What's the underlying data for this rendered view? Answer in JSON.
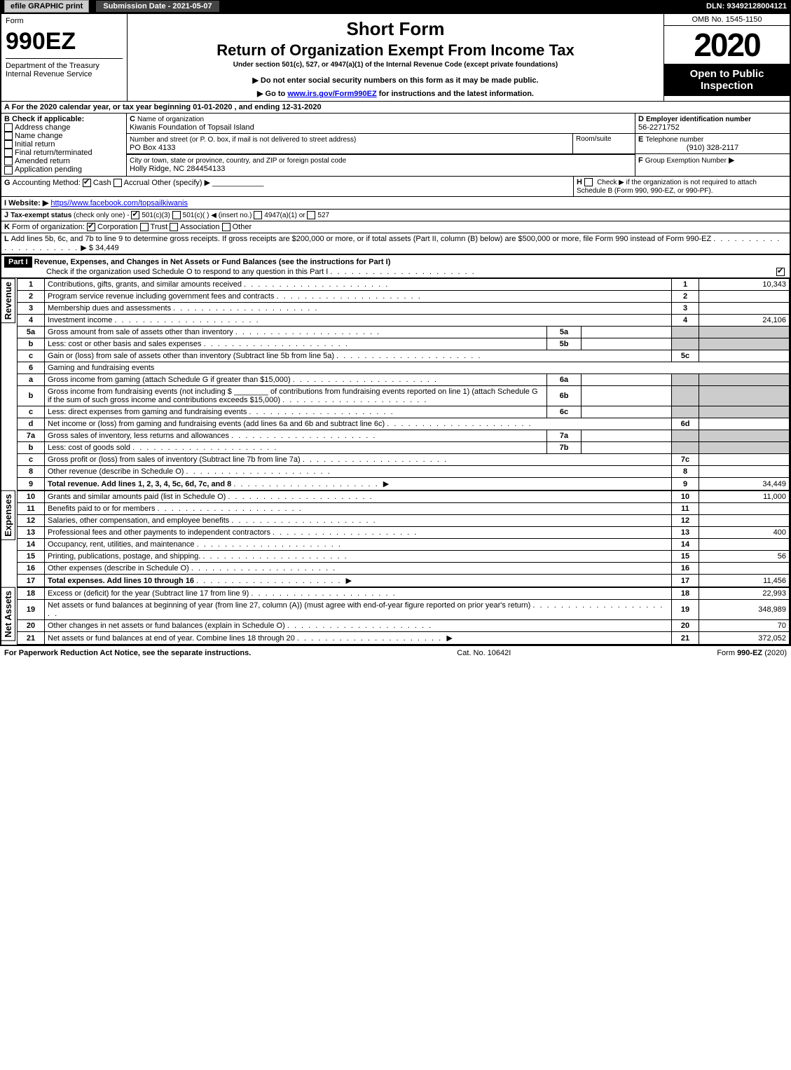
{
  "topbar": {
    "efile": "efile GRAPHIC print",
    "submission_label": "Submission Date - 2021-05-07",
    "dln": "DLN: 93492128004121"
  },
  "header": {
    "form_word": "Form",
    "form_num": "990EZ",
    "short_form": "Short Form",
    "title": "Return of Organization Exempt From Income Tax",
    "subtitle": "Under section 501(c), 527, or 4947(a)(1) of the Internal Revenue Code (except private foundations)",
    "warn": "Do not enter social security numbers on this form as it may be made public.",
    "goto_pre": "Go to ",
    "goto_link": "www.irs.gov/Form990EZ",
    "goto_post": " for instructions and the latest information.",
    "dept": "Department of the Treasury",
    "irs": "Internal Revenue Service",
    "omb": "OMB No. 1545-1150",
    "year": "2020",
    "open": "Open to Public Inspection"
  },
  "sectionA": {
    "text": "For the 2020 calendar year, or tax year beginning 01-01-2020 , and ending 12-31-2020"
  },
  "sectionB": {
    "title": "Check if applicable:",
    "opts": [
      "Address change",
      "Name change",
      "Initial return",
      "Final return/terminated",
      "Amended return",
      "Application pending"
    ]
  },
  "sectionC": {
    "label": "Name of organization",
    "value": "Kiwanis Foundation of Topsail Island",
    "street_label": "Number and street (or P. O. box, if mail is not delivered to street address)",
    "room_label": "Room/suite",
    "street": "PO Box 4133",
    "city_label": "City or town, state or province, country, and ZIP or foreign postal code",
    "city": "Holly Ridge, NC 284454133"
  },
  "sectionD": {
    "label": "Employer identification number",
    "value": "56-2271752"
  },
  "sectionE": {
    "label": "Telephone number",
    "value": "(910) 328-2117"
  },
  "sectionF": {
    "label": "Group Exemption Number",
    "arrow": "▶"
  },
  "sectionG": {
    "label": "Accounting Method:",
    "cash": "Cash",
    "accrual": "Accrual",
    "other": "Other (specify) ▶"
  },
  "sectionH": {
    "text": "Check ▶   if the organization is not required to attach Schedule B (Form 990, 990-EZ, or 990-PF)."
  },
  "sectionI": {
    "label": "Website: ▶",
    "value": "https//www.facebook.com/topsailkiwanis"
  },
  "sectionJ": {
    "text": "Tax-exempt status (check only one) -  501(c)(3)  501(c)(  ) ◀ (insert no.)  4947(a)(1) or  527"
  },
  "sectionK": {
    "label": "Form of organization:",
    "opts": [
      "Corporation",
      "Trust",
      "Association",
      "Other"
    ]
  },
  "sectionL": {
    "text": "Add lines 5b, 6c, and 7b to line 9 to determine gross receipts. If gross receipts are $200,000 or more, or if total assets (Part II, column (B) below) are $500,000 or more, file Form 990 instead of Form 990-EZ",
    "arrow": "▶ $ ",
    "amt": "34,449"
  },
  "part1": {
    "title": "Part I",
    "heading": "Revenue, Expenses, and Changes in Net Assets or Fund Balances (see the instructions for Part I)",
    "check": "Check if the organization used Schedule O to respond to any question in this Part I"
  },
  "sections_v": {
    "rev": "Revenue",
    "exp": "Expenses",
    "net": "Net Assets"
  },
  "lines": [
    {
      "n": "1",
      "d": "Contributions, gifts, grants, and similar amounts received",
      "r": "1",
      "a": "10,343"
    },
    {
      "n": "2",
      "d": "Program service revenue including government fees and contracts",
      "r": "2",
      "a": ""
    },
    {
      "n": "3",
      "d": "Membership dues and assessments",
      "r": "3",
      "a": ""
    },
    {
      "n": "4",
      "d": "Investment income",
      "r": "4",
      "a": "24,106"
    },
    {
      "n": "5a",
      "d": "Gross amount from sale of assets other than inventory",
      "m": "5a",
      "ma": "",
      "shade": true
    },
    {
      "n": "b",
      "d": "Less: cost or other basis and sales expenses",
      "m": "5b",
      "ma": "",
      "shade": true
    },
    {
      "n": "c",
      "d": "Gain or (loss) from sale of assets other than inventory (Subtract line 5b from line 5a)",
      "r": "5c",
      "a": ""
    },
    {
      "n": "6",
      "d": "Gaming and fundraising events",
      "header": true
    },
    {
      "n": "a",
      "d": "Gross income from gaming (attach Schedule G if greater than $15,000)",
      "m": "6a",
      "ma": "",
      "shade": true
    },
    {
      "n": "b",
      "d": "Gross income from fundraising events (not including $ ________ of contributions from fundraising events reported on line 1) (attach Schedule G if the sum of such gross income and contributions exceeds $15,000)",
      "m": "6b",
      "ma": "",
      "shade": true
    },
    {
      "n": "c",
      "d": "Less: direct expenses from gaming and fundraising events",
      "m": "6c",
      "ma": "",
      "shade": true
    },
    {
      "n": "d",
      "d": "Net income or (loss) from gaming and fundraising events (add lines 6a and 6b and subtract line 6c)",
      "r": "6d",
      "a": ""
    },
    {
      "n": "7a",
      "d": "Gross sales of inventory, less returns and allowances",
      "m": "7a",
      "ma": "",
      "shade": true
    },
    {
      "n": "b",
      "d": "Less: cost of goods sold",
      "m": "7b",
      "ma": "",
      "shade": true
    },
    {
      "n": "c",
      "d": "Gross profit or (loss) from sales of inventory (Subtract line 7b from line 7a)",
      "r": "7c",
      "a": ""
    },
    {
      "n": "8",
      "d": "Other revenue (describe in Schedule O)",
      "r": "8",
      "a": ""
    },
    {
      "n": "9",
      "d": "Total revenue. Add lines 1, 2, 3, 4, 5c, 6d, 7c, and 8",
      "r": "9",
      "a": "34,449",
      "bold": true,
      "arrow": true
    }
  ],
  "exp_lines": [
    {
      "n": "10",
      "d": "Grants and similar amounts paid (list in Schedule O)",
      "r": "10",
      "a": "11,000"
    },
    {
      "n": "11",
      "d": "Benefits paid to or for members",
      "r": "11",
      "a": ""
    },
    {
      "n": "12",
      "d": "Salaries, other compensation, and employee benefits",
      "r": "12",
      "a": ""
    },
    {
      "n": "13",
      "d": "Professional fees and other payments to independent contractors",
      "r": "13",
      "a": "400"
    },
    {
      "n": "14",
      "d": "Occupancy, rent, utilities, and maintenance",
      "r": "14",
      "a": ""
    },
    {
      "n": "15",
      "d": "Printing, publications, postage, and shipping.",
      "r": "15",
      "a": "56"
    },
    {
      "n": "16",
      "d": "Other expenses (describe in Schedule O)",
      "r": "16",
      "a": ""
    },
    {
      "n": "17",
      "d": "Total expenses. Add lines 10 through 16",
      "r": "17",
      "a": "11,456",
      "bold": true,
      "arrow": true
    }
  ],
  "net_lines": [
    {
      "n": "18",
      "d": "Excess or (deficit) for the year (Subtract line 17 from line 9)",
      "r": "18",
      "a": "22,993"
    },
    {
      "n": "19",
      "d": "Net assets or fund balances at beginning of year (from line 27, column (A)) (must agree with end-of-year figure reported on prior year's return)",
      "r": "19",
      "a": "348,989"
    },
    {
      "n": "20",
      "d": "Other changes in net assets or fund balances (explain in Schedule O)",
      "r": "20",
      "a": "70"
    },
    {
      "n": "21",
      "d": "Net assets or fund balances at end of year. Combine lines 18 through 20",
      "r": "21",
      "a": "372,052",
      "arrow": true
    }
  ],
  "footer": {
    "left": "For Paperwork Reduction Act Notice, see the separate instructions.",
    "mid": "Cat. No. 10642I",
    "right": "Form 990-EZ (2020)"
  },
  "colors": {
    "black": "#000000",
    "shade": "#cccccc",
    "link": "#0000ee"
  }
}
